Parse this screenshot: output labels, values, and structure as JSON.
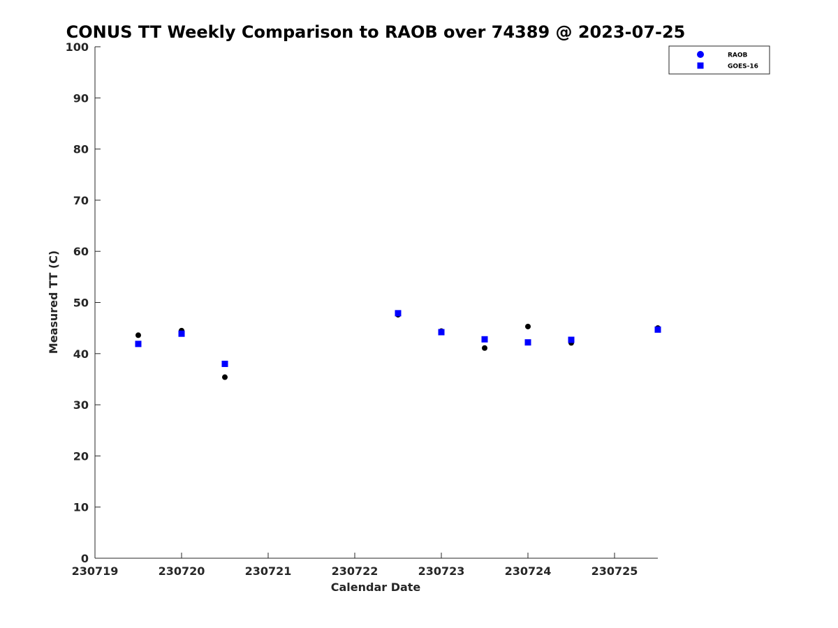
{
  "chart_data": {
    "type": "scatter",
    "title": "CONUS TT Weekly Comparison to RAOB over 74389 @ 2023-07-25",
    "xlabel": "Calendar Date",
    "ylabel": "Measured TT (C)",
    "xlim": [
      230719,
      230725.5
    ],
    "ylim": [
      0,
      100
    ],
    "x_ticks": [
      230719,
      230720,
      230721,
      230722,
      230723,
      230724,
      230725
    ],
    "x_tick_labels": [
      "230719",
      "230720",
      "230721",
      "230722",
      "230723",
      "230724",
      "230725"
    ],
    "y_ticks": [
      0,
      10,
      20,
      30,
      40,
      50,
      60,
      70,
      80,
      90,
      100
    ],
    "y_tick_labels": [
      "0",
      "10",
      "20",
      "30",
      "40",
      "50",
      "60",
      "70",
      "80",
      "90",
      "100"
    ],
    "grid": false,
    "legend_position": "top-right",
    "series": [
      {
        "name": "RAOB",
        "marker": "circle",
        "color": "#000000",
        "legend_color": "#0000ff",
        "x": [
          230719.5,
          230720.0,
          230720.5,
          230722.5,
          230723.0,
          230723.5,
          230724.0,
          230724.5,
          230725.5
        ],
        "y": [
          43.6,
          44.5,
          35.4,
          47.6,
          44.4,
          41.1,
          45.3,
          42.1,
          45.0
        ]
      },
      {
        "name": "GOES-16",
        "marker": "square",
        "color": "#0000ff",
        "legend_color": "#0000ff",
        "x": [
          230719.5,
          230720.0,
          230720.5,
          230722.5,
          230723.0,
          230723.5,
          230724.0,
          230724.5,
          230725.5
        ],
        "y": [
          41.9,
          43.9,
          38.0,
          47.9,
          44.2,
          42.8,
          42.2,
          42.7,
          44.7
        ]
      }
    ]
  }
}
